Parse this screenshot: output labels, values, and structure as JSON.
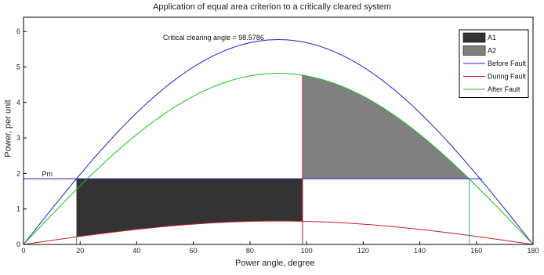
{
  "chart_data": {
    "type": "line",
    "title": "Application of equal area criterion to a critically cleared system",
    "xlabel": "Power angle, degree",
    "ylabel": "Power, per unit",
    "xlim": [
      0,
      180
    ],
    "ylim": [
      0,
      6.4
    ],
    "xticks": [
      0,
      20,
      40,
      60,
      80,
      100,
      120,
      140,
      160,
      180
    ],
    "yticks": [
      0,
      1,
      2,
      3,
      4,
      5,
      6
    ],
    "grid": false,
    "legend_position": "top-right",
    "annotation": "Critical clearing angle = 98.5786",
    "pm_label": "Pm",
    "pm": 1.85,
    "delta0_deg": 18.7,
    "critical_angle_deg": 98.5786,
    "delta_max_deg": 157.5,
    "series": [
      {
        "name": "Before Fault",
        "color": "#2020c0",
        "amplitude": 5.77
      },
      {
        "name": "During Fault",
        "color": "#c02020",
        "amplitude": 0.66
      },
      {
        "name": "After Fault",
        "color": "#20c020",
        "amplitude": 4.82
      }
    ],
    "areas": [
      {
        "name": "A1",
        "color": "#333333"
      },
      {
        "name": "A2",
        "color": "#808080"
      }
    ]
  }
}
